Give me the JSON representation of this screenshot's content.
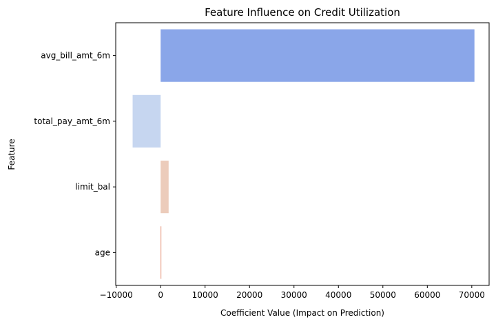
{
  "chart_data": {
    "type": "bar",
    "orientation": "horizontal",
    "title": "Feature Influence on Credit Utilization",
    "xlabel": "Coefficient Value (Impact on Prediction)",
    "ylabel": "Feature",
    "categories": [
      "avg_bill_amt_6m",
      "total_pay_amt_6m",
      "limit_bal",
      "age"
    ],
    "values": [
      70600,
      -6300,
      1800,
      150
    ],
    "colors": [
      "#8aa6e9",
      "#c6d6f0",
      "#ecccbb",
      "#e59276"
    ],
    "xlim": [
      -10100,
      73900
    ],
    "xticks": [
      -10000,
      0,
      10000,
      20000,
      30000,
      40000,
      50000,
      60000,
      70000
    ],
    "xtick_labels": [
      "−10000",
      "0",
      "10000",
      "20000",
      "30000",
      "40000",
      "50000",
      "60000",
      "70000"
    ],
    "grid": false,
    "legend": "none"
  }
}
